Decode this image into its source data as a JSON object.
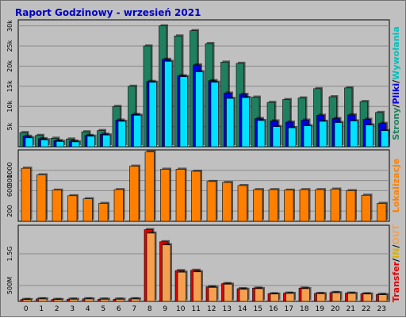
{
  "title": "Raport Godzinowy -  wrzesień 2021",
  "colors": {
    "background": "#c0c0c0",
    "plot_bg": "#c0c0c0",
    "grid": "#8a8a8a",
    "strony": "#1f8060",
    "pliki": "#0000e0",
    "wywolania": "#00e0ff",
    "lokalizacje": "#ff8000",
    "transfer": "#e00000",
    "in": "#e0b000",
    "out": "#f5a050"
  },
  "side_labels": {
    "top": [
      {
        "text": "Strony",
        "color": "#1f8060"
      },
      {
        "text": "/",
        "color": "#000000"
      },
      {
        "text": "Pliki",
        "color": "#0000e0"
      },
      {
        "text": "/",
        "color": "#000000"
      },
      {
        "text": "Wywołania",
        "color": "#00c0c0"
      }
    ],
    "mid": [
      {
        "text": "Lokalizacje",
        "color": "#ff8000"
      }
    ],
    "bottom": [
      {
        "text": "Transfer",
        "color": "#e00000"
      },
      {
        "text": "/",
        "color": "#000000"
      },
      {
        "text": "IN",
        "color": "#e0b000"
      },
      {
        "text": "/",
        "color": "#000000"
      },
      {
        "text": "OUT",
        "color": "#f5a050"
      }
    ]
  },
  "chart_data": [
    {
      "type": "bar",
      "categories": [
        "0",
        "1",
        "2",
        "3",
        "4",
        "5",
        "6",
        "7",
        "8",
        "9",
        "10",
        "11",
        "12",
        "13",
        "14",
        "15",
        "16",
        "17",
        "18",
        "19",
        "20",
        "21",
        "22",
        "23"
      ],
      "series": [
        {
          "name": "Strony",
          "values": [
            3500,
            2800,
            2100,
            1900,
            3700,
            4000,
            10000,
            15000,
            25000,
            30000,
            27500,
            28800,
            25600,
            21000,
            20700,
            12300,
            11000,
            11700,
            12100,
            14400,
            12400,
            14600,
            11200,
            8500
          ]
        },
        {
          "name": "Pliki",
          "values": [
            2600,
            2000,
            1500,
            1400,
            2800,
            3100,
            6600,
            8000,
            16200,
            21700,
            17600,
            20300,
            16400,
            13300,
            13000,
            7000,
            6400,
            6100,
            6600,
            7800,
            7000,
            7900,
            6800,
            5800
          ]
        },
        {
          "name": "Wywołania",
          "values": [
            2200,
            1700,
            1300,
            1200,
            2600,
            2900,
            6300,
            7800,
            16000,
            21200,
            17400,
            18600,
            16000,
            12000,
            12200,
            6500,
            5000,
            4700,
            5200,
            6300,
            6000,
            6400,
            5400,
            4000
          ]
        }
      ],
      "ytick_labels": [
        "5k",
        "10k",
        "15k",
        "20k",
        "25k",
        "30k"
      ],
      "ylim": [
        0,
        31500
      ]
    },
    {
      "type": "bar",
      "categories": [
        "0",
        "1",
        "2",
        "3",
        "4",
        "5",
        "6",
        "7",
        "8",
        "9",
        "10",
        "11",
        "12",
        "13",
        "14",
        "15",
        "16",
        "17",
        "18",
        "19",
        "20",
        "21",
        "22",
        "23"
      ],
      "series": [
        {
          "name": "Lokalizacje",
          "values": [
            1040,
            910,
            610,
            500,
            440,
            350,
            620,
            1080,
            1360,
            1020,
            1020,
            980,
            780,
            760,
            700,
            620,
            620,
            610,
            620,
            620,
            630,
            600,
            510,
            350
          ]
        }
      ],
      "ytick_labels": [
        "200",
        "600",
        "800",
        "1000"
      ],
      "ytick_values": [
        200,
        600,
        800,
        1000
      ],
      "ylim": [
        0,
        1400
      ]
    },
    {
      "type": "bar",
      "categories": [
        "0",
        "1",
        "2",
        "3",
        "4",
        "5",
        "6",
        "7",
        "8",
        "9",
        "10",
        "11",
        "12",
        "13",
        "14",
        "15",
        "16",
        "17",
        "18",
        "19",
        "20",
        "21",
        "22",
        "23"
      ],
      "series": [
        {
          "name": "Transfer",
          "values": [
            60,
            80,
            60,
            70,
            80,
            70,
            70,
            80,
            2260,
            1880,
            970,
            980,
            460,
            560,
            400,
            420,
            240,
            260,
            420,
            250,
            280,
            260,
            240,
            220
          ]
        },
        {
          "name": "OUT",
          "values": [
            55,
            75,
            55,
            65,
            75,
            65,
            65,
            75,
            2150,
            1780,
            920,
            930,
            440,
            540,
            380,
            400,
            230,
            250,
            400,
            240,
            270,
            250,
            230,
            210
          ]
        }
      ],
      "ytick_labels": [
        "500M",
        "1.5G"
      ],
      "ytick_values": [
        500,
        1500
      ],
      "ylim": [
        0,
        2400
      ]
    }
  ],
  "x_tick_labels": [
    "0",
    "1",
    "2",
    "3",
    "4",
    "5",
    "6",
    "7",
    "8",
    "9",
    "10",
    "11",
    "12",
    "13",
    "14",
    "15",
    "16",
    "17",
    "18",
    "19",
    "20",
    "21",
    "22",
    "23"
  ]
}
